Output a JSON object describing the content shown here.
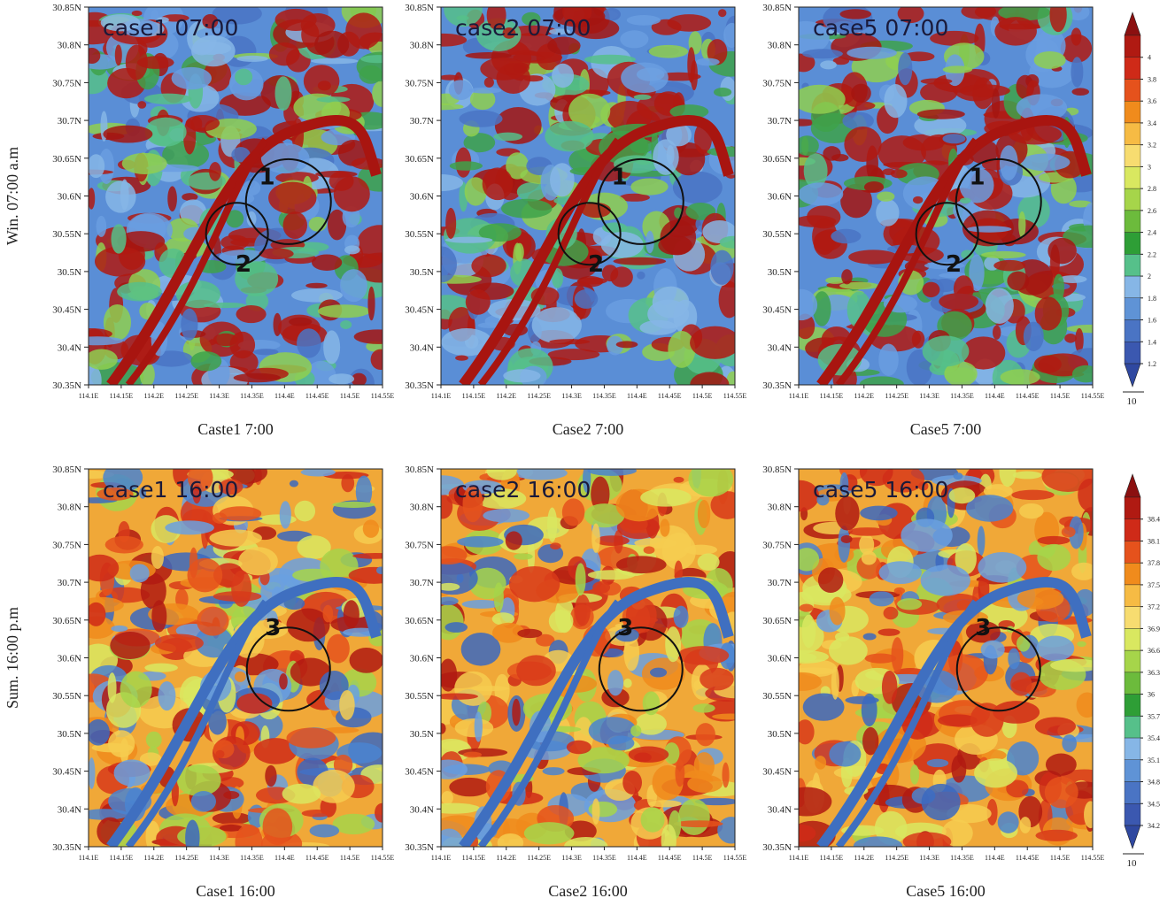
{
  "axes": {
    "xticks": [
      "114.1E",
      "114.15E",
      "114.2E",
      "114.25E",
      "114.3E",
      "114.35E",
      "114.4E",
      "114.45E",
      "114.5E",
      "114.55E"
    ],
    "yticks": [
      "30.85N",
      "30.8N",
      "30.75N",
      "30.7N",
      "30.65N",
      "30.6N",
      "30.55N",
      "30.5N",
      "30.45N",
      "30.4N",
      "30.35N"
    ]
  },
  "rows": [
    {
      "label": "Win. 07:00 a.m",
      "panels": [
        {
          "inset": "case1 07:00",
          "caption": "Caste1 7:00",
          "circles": [
            "1",
            "2"
          ]
        },
        {
          "inset": "case2 07:00",
          "caption": "Case2 7:00",
          "circles": [
            "1",
            "2"
          ]
        },
        {
          "inset": "case5 07:00",
          "caption": "Case5 7:00",
          "circles": [
            "1",
            "2"
          ]
        }
      ],
      "colorbar": {
        "ticks": [
          4,
          3.8,
          3.6,
          3.4,
          3.2,
          3,
          2.8,
          2.6,
          2.4,
          2.2,
          2,
          1.8,
          1.6,
          1.4,
          1.2
        ],
        "colors": [
          "#8b1010",
          "#b01a12",
          "#cf2a18",
          "#e5521c",
          "#f08b1c",
          "#f6bb44",
          "#f7dc70",
          "#d9e860",
          "#a6d54a",
          "#6cbb3c",
          "#2e9e36",
          "#56c08a",
          "#86b6e6",
          "#5f93d6",
          "#4a74c4",
          "#3b58b0",
          "#2f48a0"
        ],
        "arrow_label": "10"
      }
    },
    {
      "label": "Sum. 16:00 p.m",
      "panels": [
        {
          "inset": "case1 16:00",
          "caption": "Case1 16:00",
          "circles": [
            "3"
          ]
        },
        {
          "inset": "case2 16:00",
          "caption": "Case2 16:00",
          "circles": [
            "3"
          ]
        },
        {
          "inset": "case5 16:00",
          "caption": "Case5 16:00",
          "circles": [
            "3"
          ]
        }
      ],
      "colorbar": {
        "ticks": [
          38.4,
          38.1,
          37.8,
          37.5,
          37.2,
          36.9,
          36.6,
          36.3,
          36,
          35.7,
          35.4,
          35.1,
          34.8,
          34.5,
          34.2
        ],
        "colors": [
          "#8b1010",
          "#b01a12",
          "#cf2a18",
          "#e5521c",
          "#f08b1c",
          "#f6bb44",
          "#f7dc70",
          "#d9e860",
          "#a6d54a",
          "#6cbb3c",
          "#2e9e36",
          "#56c08a",
          "#86b6e6",
          "#5f93d6",
          "#4a74c4",
          "#3b58b0",
          "#2f48a0"
        ],
        "arrow_label": "10"
      }
    }
  ]
}
